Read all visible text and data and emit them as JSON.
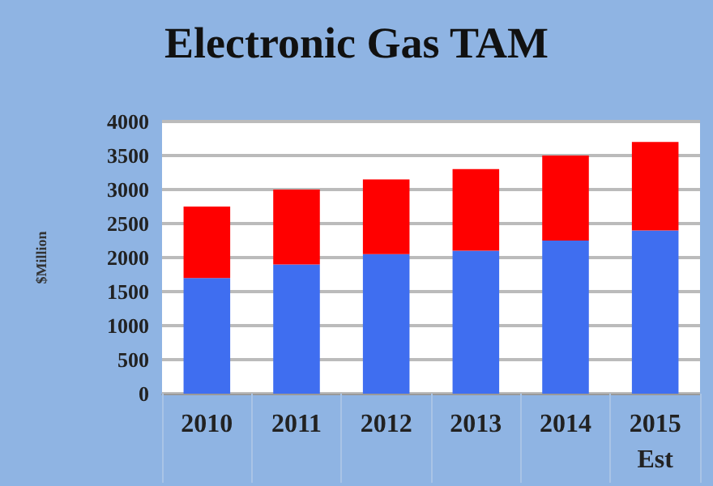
{
  "chart_data": {
    "type": "bar",
    "title": "Electronic Gas TAM",
    "ylabel": "$Million",
    "categories": [
      "2010",
      "2011",
      "2012",
      "2013",
      "2014",
      "2015\nEst"
    ],
    "stacked": true,
    "series": [
      {
        "color": "#3f6ef0",
        "values": [
          1700,
          1900,
          2050,
          2100,
          2250,
          2400
        ]
      },
      {
        "color": "#ff0000",
        "values": [
          1050,
          1100,
          1100,
          1200,
          1250,
          1300
        ]
      }
    ],
    "ylim": [
      0,
      4000
    ],
    "yticks": [
      0,
      500,
      1000,
      1500,
      2000,
      2500,
      3000,
      3500,
      4000
    ],
    "grid": "y"
  }
}
